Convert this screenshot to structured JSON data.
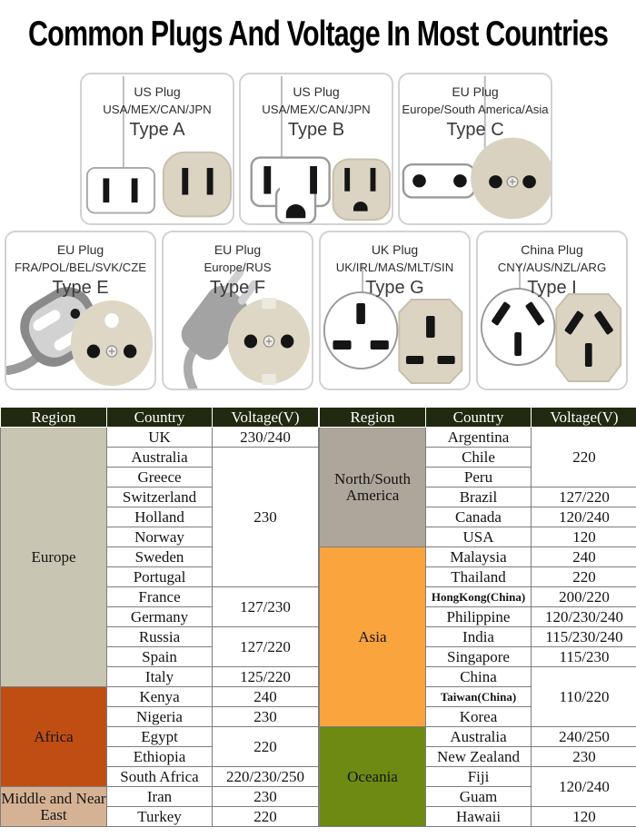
{
  "title": "Common Plugs And Voltage In Most Countries",
  "plug_cards": [
    {
      "name": "US Plug",
      "countries": "USA/MEX/CAN/JPN",
      "type": "Type A"
    },
    {
      "name": "US Plug",
      "countries": "USA/MEX/CAN/JPN",
      "type": "Type B"
    },
    {
      "name": "EU Plug",
      "countries": "Europe/South America/Asia",
      "type": "Type C"
    },
    {
      "name": "EU Plug",
      "countries": "FRA/POL/BEL/SVK/CZE",
      "type": "Type E"
    },
    {
      "name": "EU Plug",
      "countries": "Europe/RUS",
      "type": "Type F"
    },
    {
      "name": "UK Plug",
      "countries": "UK/IRL/MAS/MLT/SIN",
      "type": "Type G"
    },
    {
      "name": "China Plug",
      "countries": "CNY/AUS/NZL/ARG",
      "type": "Type I"
    }
  ],
  "colors": {
    "header_bg": "#212a10",
    "header_text": "#ffffff",
    "socket_beige": "#dbd4c2",
    "europe": "#c8c5b3",
    "africa": "#c04e13",
    "middle_near_east": "#d6b294",
    "north_south_america": "#ada69a",
    "asia": "#f9a43c",
    "oceania": "#6d8a12"
  },
  "voltage_tables": [
    {
      "headers": [
        "Region",
        "Country",
        "Voltage(V)"
      ],
      "regions": [
        {
          "label": "Europe",
          "bg": "#c8c5b3",
          "rows": [
            {
              "country": "UK",
              "voltage": "230/240",
              "vrowspan": 1
            },
            {
              "country": "Australia",
              "voltage": "230",
              "vrowspan": 7
            },
            {
              "country": "Greece"
            },
            {
              "country": "Switzerland"
            },
            {
              "country": "Holland"
            },
            {
              "country": "Norway"
            },
            {
              "country": "Sweden"
            },
            {
              "country": "Portugal"
            },
            {
              "country": "France",
              "voltage": "127/230",
              "vrowspan": 2
            },
            {
              "country": "Germany"
            },
            {
              "country": "Russia",
              "voltage": "127/220",
              "vrowspan": 2
            },
            {
              "country": "Spain"
            },
            {
              "country": "Italy",
              "voltage": "125/220",
              "vrowspan": 1
            }
          ]
        },
        {
          "label": "Africa",
          "bg": "#c04e13",
          "rows": [
            {
              "country": "Kenya",
              "voltage": "240",
              "vrowspan": 1
            },
            {
              "country": "Nigeria",
              "voltage": "230",
              "vrowspan": 1
            },
            {
              "country": "Egypt",
              "voltage": "220",
              "vrowspan": 2
            },
            {
              "country": "Ethiopia"
            },
            {
              "country": "South Africa",
              "voltage": "220/230/250",
              "vrowspan": 1
            }
          ]
        },
        {
          "label": "Middle and Near East",
          "bg": "#d6b294",
          "rows": [
            {
              "country": "Iran",
              "voltage": "230",
              "vrowspan": 1
            },
            {
              "country": "Turkey",
              "voltage": "220",
              "vrowspan": 1
            }
          ]
        }
      ]
    },
    {
      "headers": [
        "Region",
        "Country",
        "Voltage(V)"
      ],
      "regions": [
        {
          "label": "North/South America",
          "bg": "#ada69a",
          "rows": [
            {
              "country": "Argentina",
              "voltage": "220",
              "vrowspan": 3
            },
            {
              "country": "Chile"
            },
            {
              "country": "Peru"
            },
            {
              "country": "Brazil",
              "voltage": "127/220",
              "vrowspan": 1
            },
            {
              "country": "Canada",
              "voltage": "120/240",
              "vrowspan": 1
            },
            {
              "country": "USA",
              "voltage": "120",
              "vrowspan": 1
            }
          ]
        },
        {
          "label": "Asia",
          "bg": "#f9a43c",
          "rows": [
            {
              "country": "Malaysia",
              "voltage": "240",
              "vrowspan": 1
            },
            {
              "country": "Thailand",
              "voltage": "220",
              "vrowspan": 1
            },
            {
              "country": "HongKong(China)",
              "voltage": "200/220",
              "vrowspan": 1
            },
            {
              "country": "Philippine",
              "voltage": "120/230/240",
              "vrowspan": 1
            },
            {
              "country": "India",
              "voltage": "115/230/240",
              "vrowspan": 1
            },
            {
              "country": "Singapore",
              "voltage": "115/230",
              "vrowspan": 1
            },
            {
              "country": "China",
              "voltage": "110/220",
              "vrowspan": 3
            },
            {
              "country": "Taiwan(China)"
            },
            {
              "country": "Korea"
            }
          ]
        },
        {
          "label": "Oceania",
          "bg": "#6d8a12",
          "rows": [
            {
              "country": "Australia",
              "voltage": "240/250",
              "vrowspan": 1
            },
            {
              "country": "New Zealand",
              "voltage": "230",
              "vrowspan": 1
            },
            {
              "country": "Fiji",
              "voltage": "120/240",
              "vrowspan": 2
            },
            {
              "country": "Guam"
            },
            {
              "country": "Hawaii",
              "voltage": "120",
              "vrowspan": 1
            }
          ]
        }
      ]
    }
  ]
}
